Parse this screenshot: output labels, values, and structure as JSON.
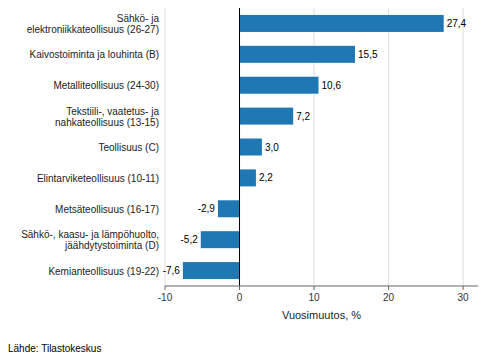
{
  "chart_data": {
    "type": "bar",
    "orientation": "horizontal",
    "categories": [
      "Kemianteollisuus (19-22)",
      "Sähkö-, kaasu- ja lämpöhuolto,\njäähdytystoiminta (D)",
      "Metsäteollisuus (16-17)",
      "Elintarviketeollisuus (10-11)",
      "Teollisuus (C)",
      "Tekstiili-, vaatetus- ja\nnahkateollisuus (13-15)",
      "Metalliteollisuus (24-30)",
      "Kaivostoiminta ja louhinta (B)",
      "Sähkö- ja\nelektroniikkateollisuus (26-27)"
    ],
    "values": [
      -7.6,
      -5.2,
      -2.9,
      2.2,
      3.0,
      7.2,
      10.6,
      15.5,
      27.4
    ],
    "value_labels": [
      "-7,6",
      "-5,2",
      "-2,9",
      "2,2",
      "3,0",
      "7,2",
      "10,6",
      "15,5",
      "27,4"
    ],
    "color": "#1f77b4",
    "xlabel": "Vuosimuutos, %",
    "xlim": [
      -10,
      32
    ],
    "xticks": [
      -10,
      0,
      10,
      20,
      30
    ],
    "grid": true,
    "annotations": [
      "Lähde: Tilastokeskus"
    ]
  }
}
